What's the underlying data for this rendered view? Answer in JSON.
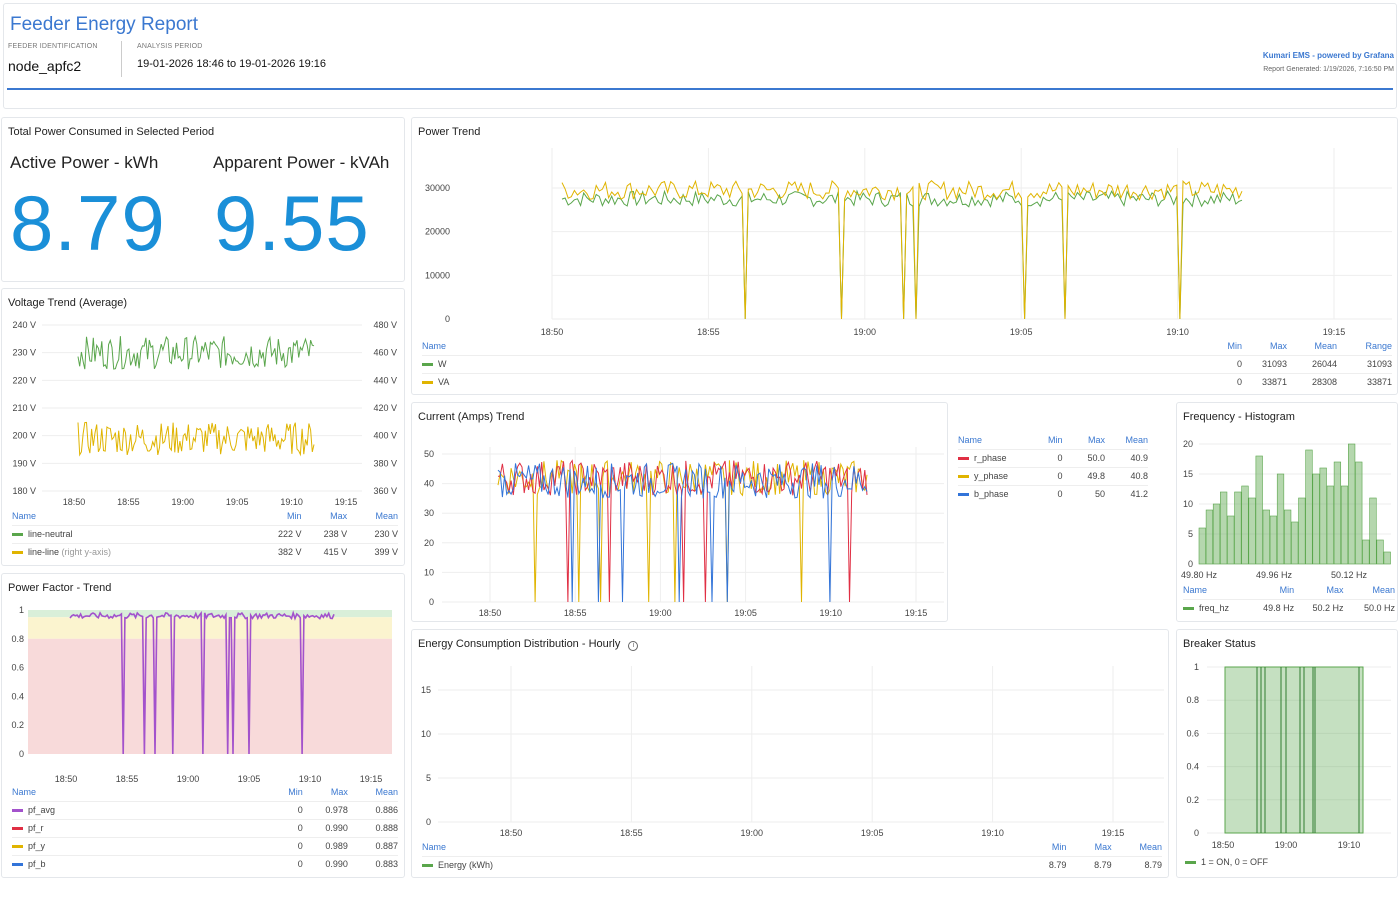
{
  "header": {
    "title": "Feeder Energy Report",
    "feeder_label": "FEEDER IDENTIFICATION",
    "feeder_value": "node_apfc2",
    "period_label": "ANALYSIS PERIOD",
    "period_value": "19-01-2026 18:46 to 19-01-2026 19:16",
    "brand": "Kumari EMS - powered by Grafana",
    "generated": "Report Generated: 1/19/2026, 7:16:50 PM",
    "accent": "#3b78d0"
  },
  "total_power": {
    "title": "Total Power Consumed in Selected Period",
    "active_label": "Active Power - kWh",
    "active_value": "8.79",
    "apparent_label": "Apparent Power - kVAh",
    "apparent_value": "9.55",
    "color": "#1a8fd8"
  },
  "power_trend": {
    "title": "Power Trend",
    "y_ticks": [
      "30000",
      "20000",
      "10000",
      "0"
    ],
    "x_ticks": [
      "18:50",
      "18:55",
      "19:00",
      "19:05",
      "19:10",
      "19:15"
    ],
    "legend_headers": [
      "Name",
      "Min",
      "Max",
      "Mean",
      "Range"
    ],
    "legend": [
      {
        "name": "W",
        "color": "#5aa64c",
        "min": "0",
        "max": "31093",
        "mean": "26044",
        "range": "31093"
      },
      {
        "name": "VA",
        "color": "#e0b400",
        "min": "0",
        "max": "33871",
        "mean": "28308",
        "range": "33871"
      }
    ]
  },
  "voltage_trend": {
    "title": "Voltage Trend (Average)",
    "y_left": [
      "240 V",
      "230 V",
      "220 V",
      "210 V",
      "200 V",
      "190 V",
      "180 V"
    ],
    "y_right": [
      "480 V",
      "460 V",
      "440 V",
      "420 V",
      "400 V",
      "380 V",
      "360 V"
    ],
    "x_ticks": [
      "18:50",
      "18:55",
      "19:00",
      "19:05",
      "19:10",
      "19:15"
    ],
    "legend_headers": [
      "Name",
      "Min",
      "Max",
      "Mean"
    ],
    "legend": [
      {
        "name": "line-neutral",
        "suffix": "",
        "color": "#5aa64c",
        "min": "222 V",
        "max": "238 V",
        "mean": "230 V"
      },
      {
        "name": "line-line",
        "suffix": " (right y-axis)",
        "color": "#e0b400",
        "min": "382 V",
        "max": "415 V",
        "mean": "399 V"
      }
    ]
  },
  "current_trend": {
    "title": "Current (Amps) Trend",
    "y_ticks": [
      "50",
      "40",
      "30",
      "20",
      "10",
      "0"
    ],
    "x_ticks": [
      "18:50",
      "18:55",
      "19:00",
      "19:05",
      "19:10",
      "19:15"
    ],
    "legend_headers": [
      "Name",
      "Min",
      "Max",
      "Mean"
    ],
    "legend": [
      {
        "name": "r_phase",
        "color": "#e02f44",
        "min": "0",
        "max": "50.0",
        "mean": "40.9"
      },
      {
        "name": "y_phase",
        "color": "#e0b400",
        "min": "0",
        "max": "49.8",
        "mean": "40.8"
      },
      {
        "name": "b_phase",
        "color": "#3274d9",
        "min": "0",
        "max": "50",
        "mean": "41.2"
      }
    ]
  },
  "frequency": {
    "title": "Frequency - Histogram",
    "y_ticks": [
      "20",
      "15",
      "10",
      "5",
      "0"
    ],
    "x_ticks": [
      "49.80 Hz",
      "49.96 Hz",
      "50.12 Hz"
    ],
    "legend_headers": [
      "Name",
      "Min",
      "Max",
      "Mean"
    ],
    "legend": [
      {
        "name": "freq_hz",
        "color": "#5aa64c",
        "min": "49.8 Hz",
        "max": "50.2 Hz",
        "mean": "50.0 Hz"
      }
    ]
  },
  "power_factor": {
    "title": "Power Factor - Trend",
    "y_ticks": [
      "1",
      "0.8",
      "0.6",
      "0.4",
      "0.2",
      "0"
    ],
    "x_ticks": [
      "18:50",
      "18:55",
      "19:00",
      "19:05",
      "19:10",
      "19:15"
    ],
    "legend_headers": [
      "Name",
      "Min",
      "Max",
      "Mean"
    ],
    "legend": [
      {
        "name": "pf_avg",
        "color": "#a352cc",
        "min": "0",
        "max": "0.978",
        "mean": "0.886"
      },
      {
        "name": "pf_r",
        "color": "#e02f44",
        "min": "0",
        "max": "0.990",
        "mean": "0.888"
      },
      {
        "name": "pf_y",
        "color": "#e0b400",
        "min": "0",
        "max": "0.989",
        "mean": "0.887"
      },
      {
        "name": "pf_b",
        "color": "#3274d9",
        "min": "0",
        "max": "0.990",
        "mean": "0.883"
      }
    ]
  },
  "energy_hourly": {
    "title": "Energy Consumption Distribution - Hourly",
    "info_icon": "info-circle-icon",
    "y_ticks": [
      "15",
      "10",
      "5",
      "0"
    ],
    "x_ticks": [
      "18:50",
      "18:55",
      "19:00",
      "19:05",
      "19:10",
      "19:15"
    ],
    "legend_headers": [
      "Name",
      "Min",
      "Max",
      "Mean"
    ],
    "legend": [
      {
        "name": "Energy (kWh)",
        "color": "#5aa64c",
        "min": "8.79",
        "max": "8.79",
        "mean": "8.79"
      }
    ]
  },
  "breaker": {
    "title": "Breaker Status",
    "y_ticks": [
      "1",
      "0.8",
      "0.6",
      "0.4",
      "0.2",
      "0"
    ],
    "x_ticks": [
      "18:50",
      "19:00",
      "19:10"
    ],
    "legend": "1 = ON, 0 = OFF",
    "color": "#5aa64c"
  }
}
